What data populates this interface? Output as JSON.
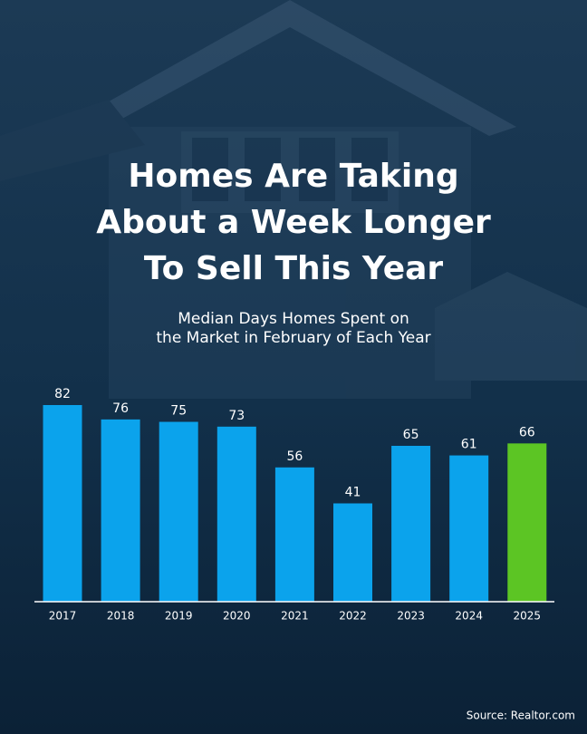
{
  "chart_data": {
    "type": "bar",
    "title_lines": [
      "Homes Are Taking",
      "About a Week Longer",
      "To Sell This Year"
    ],
    "subtitle_lines": [
      "Median Days Homes Spent on",
      "the Market in February of Each Year"
    ],
    "categories": [
      "2017",
      "2018",
      "2019",
      "2020",
      "2021",
      "2022",
      "2023",
      "2024",
      "2025"
    ],
    "values": [
      82,
      76,
      75,
      73,
      56,
      41,
      65,
      61,
      66
    ],
    "colors": [
      "#0ba3ec",
      "#0ba3ec",
      "#0ba3ec",
      "#0ba3ec",
      "#0ba3ec",
      "#0ba3ec",
      "#0ba3ec",
      "#0ba3ec",
      "#5cc524"
    ],
    "ylim": [
      0,
      82
    ],
    "source": "Source: Realtor.com"
  }
}
